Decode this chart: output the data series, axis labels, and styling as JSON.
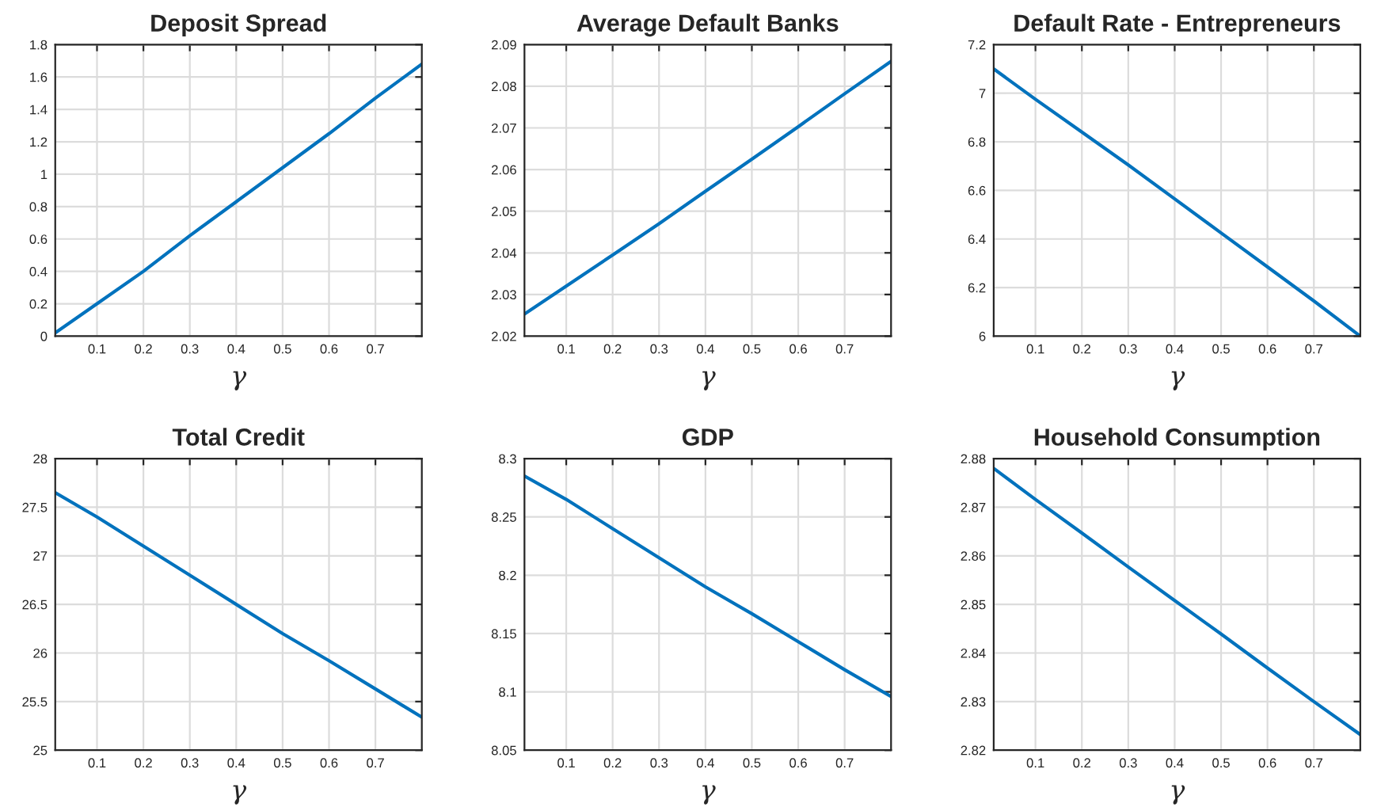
{
  "chart_data": [
    {
      "type": "line",
      "title": "Deposit Spread",
      "xlabel": "γ",
      "x": [
        0.01,
        0.1,
        0.2,
        0.3,
        0.4,
        0.5,
        0.6,
        0.7,
        0.8
      ],
      "series": [
        {
          "color": "#0072bd",
          "values": [
            0.02,
            0.2,
            0.4,
            0.62,
            0.83,
            1.04,
            1.25,
            1.47,
            1.68
          ]
        }
      ],
      "xlim": [
        0.01,
        0.8
      ],
      "xticks": [
        0.1,
        0.2,
        0.3,
        0.4,
        0.5,
        0.6,
        0.7
      ],
      "ylim": [
        0,
        1.8
      ],
      "yticks": [
        0,
        0.2,
        0.4,
        0.6,
        0.8,
        1,
        1.2,
        1.4,
        1.6,
        1.8
      ],
      "grid": true
    },
    {
      "type": "line",
      "title": "Average Default Banks",
      "xlabel": "γ",
      "x": [
        0.01,
        0.1,
        0.2,
        0.3,
        0.4,
        0.5,
        0.6,
        0.7,
        0.8
      ],
      "series": [
        {
          "color": "#0072bd",
          "values": [
            2.0253,
            2.032,
            2.0395,
            2.047,
            2.0548,
            2.0625,
            2.0703,
            2.0782,
            2.086
          ]
        }
      ],
      "xlim": [
        0.01,
        0.8
      ],
      "xticks": [
        0.1,
        0.2,
        0.3,
        0.4,
        0.5,
        0.6,
        0.7
      ],
      "ylim": [
        2.02,
        2.09
      ],
      "yticks": [
        2.02,
        2.03,
        2.04,
        2.05,
        2.06,
        2.07,
        2.08,
        2.09
      ],
      "grid": true
    },
    {
      "type": "line",
      "title": "Default Rate - Entrepreneurs",
      "xlabel": "γ",
      "x": [
        0.01,
        0.1,
        0.2,
        0.3,
        0.4,
        0.5,
        0.6,
        0.7,
        0.8
      ],
      "series": [
        {
          "color": "#0072bd",
          "values": [
            7.1,
            6.975,
            6.84,
            6.705,
            6.565,
            6.425,
            6.285,
            6.145,
            6.0
          ]
        }
      ],
      "xlim": [
        0.01,
        0.8
      ],
      "xticks": [
        0.1,
        0.2,
        0.3,
        0.4,
        0.5,
        0.6,
        0.7
      ],
      "ylim": [
        6,
        7.2
      ],
      "yticks": [
        6,
        6.2,
        6.4,
        6.6,
        6.8,
        7,
        7.2
      ],
      "grid": true
    },
    {
      "type": "line",
      "title": "Total Credit",
      "xlabel": "γ",
      "x": [
        0.01,
        0.1,
        0.2,
        0.3,
        0.4,
        0.5,
        0.6,
        0.7,
        0.8
      ],
      "series": [
        {
          "color": "#0072bd",
          "values": [
            27.65,
            27.4,
            27.1,
            26.8,
            26.5,
            26.2,
            25.92,
            25.63,
            25.34
          ]
        }
      ],
      "xlim": [
        0.01,
        0.8
      ],
      "xticks": [
        0.1,
        0.2,
        0.3,
        0.4,
        0.5,
        0.6,
        0.7
      ],
      "ylim": [
        25,
        28
      ],
      "yticks": [
        25,
        25.5,
        26,
        26.5,
        27,
        27.5,
        28
      ],
      "grid": true
    },
    {
      "type": "line",
      "title": "GDP",
      "xlabel": "γ",
      "x": [
        0.01,
        0.1,
        0.2,
        0.3,
        0.4,
        0.5,
        0.6,
        0.7,
        0.8
      ],
      "series": [
        {
          "color": "#0072bd",
          "values": [
            8.285,
            8.265,
            8.24,
            8.215,
            8.19,
            8.167,
            8.143,
            8.119,
            8.096
          ]
        }
      ],
      "xlim": [
        0.01,
        0.8
      ],
      "xticks": [
        0.1,
        0.2,
        0.3,
        0.4,
        0.5,
        0.6,
        0.7
      ],
      "ylim": [
        8.05,
        8.3
      ],
      "yticks": [
        8.05,
        8.1,
        8.15,
        8.2,
        8.25,
        8.3
      ],
      "grid": true
    },
    {
      "type": "line",
      "title": "Household Consumption",
      "xlabel": "γ",
      "x": [
        0.01,
        0.1,
        0.2,
        0.3,
        0.4,
        0.5,
        0.6,
        0.7,
        0.8
      ],
      "series": [
        {
          "color": "#0072bd",
          "values": [
            2.878,
            2.8716,
            2.8647,
            2.8577,
            2.8508,
            2.8439,
            2.8369,
            2.83,
            2.8232
          ]
        }
      ],
      "xlim": [
        0.01,
        0.8
      ],
      "xticks": [
        0.1,
        0.2,
        0.3,
        0.4,
        0.5,
        0.6,
        0.7
      ],
      "ylim": [
        2.82,
        2.88
      ],
      "yticks": [
        2.82,
        2.83,
        2.84,
        2.85,
        2.86,
        2.87,
        2.88
      ],
      "grid": true
    }
  ]
}
